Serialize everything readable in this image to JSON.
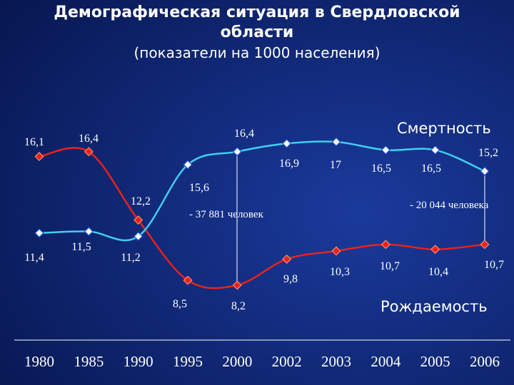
{
  "chart_data": {
    "type": "line",
    "title": "Демографическая ситуация в Свердловской области",
    "subtitle": "(показатели на 1000 населения)",
    "categories": [
      "1980",
      "1985",
      "1990",
      "1995",
      "2000",
      "2002",
      "2003",
      "2004",
      "2005",
      "2006"
    ],
    "series": [
      {
        "name": "Рождаемость",
        "color": "#e8221b",
        "values": [
          16.1,
          16.4,
          12.2,
          8.5,
          8.2,
          9.8,
          10.3,
          10.7,
          10.4,
          10.7
        ],
        "value_labels": [
          "16,1",
          "16,4",
          "12,2",
          "8,5",
          "8,2",
          "9,8",
          "10,3",
          "10,7",
          "10,4",
          "10,7"
        ]
      },
      {
        "name": "Смертность",
        "color": "#3fd0f0",
        "values": [
          11.4,
          11.5,
          11.2,
          15.6,
          16.4,
          16.9,
          17,
          16.5,
          16.5,
          15.2
        ],
        "value_labels": [
          "11,4",
          "11,5",
          "11,2",
          "15,6",
          "16,4",
          "16,9",
          "17",
          "16,5",
          "16,5",
          "15,2"
        ]
      }
    ],
    "annotations": [
      {
        "text": "- 37 881 человек"
      },
      {
        "text": "- 20 044 человека"
      }
    ]
  }
}
